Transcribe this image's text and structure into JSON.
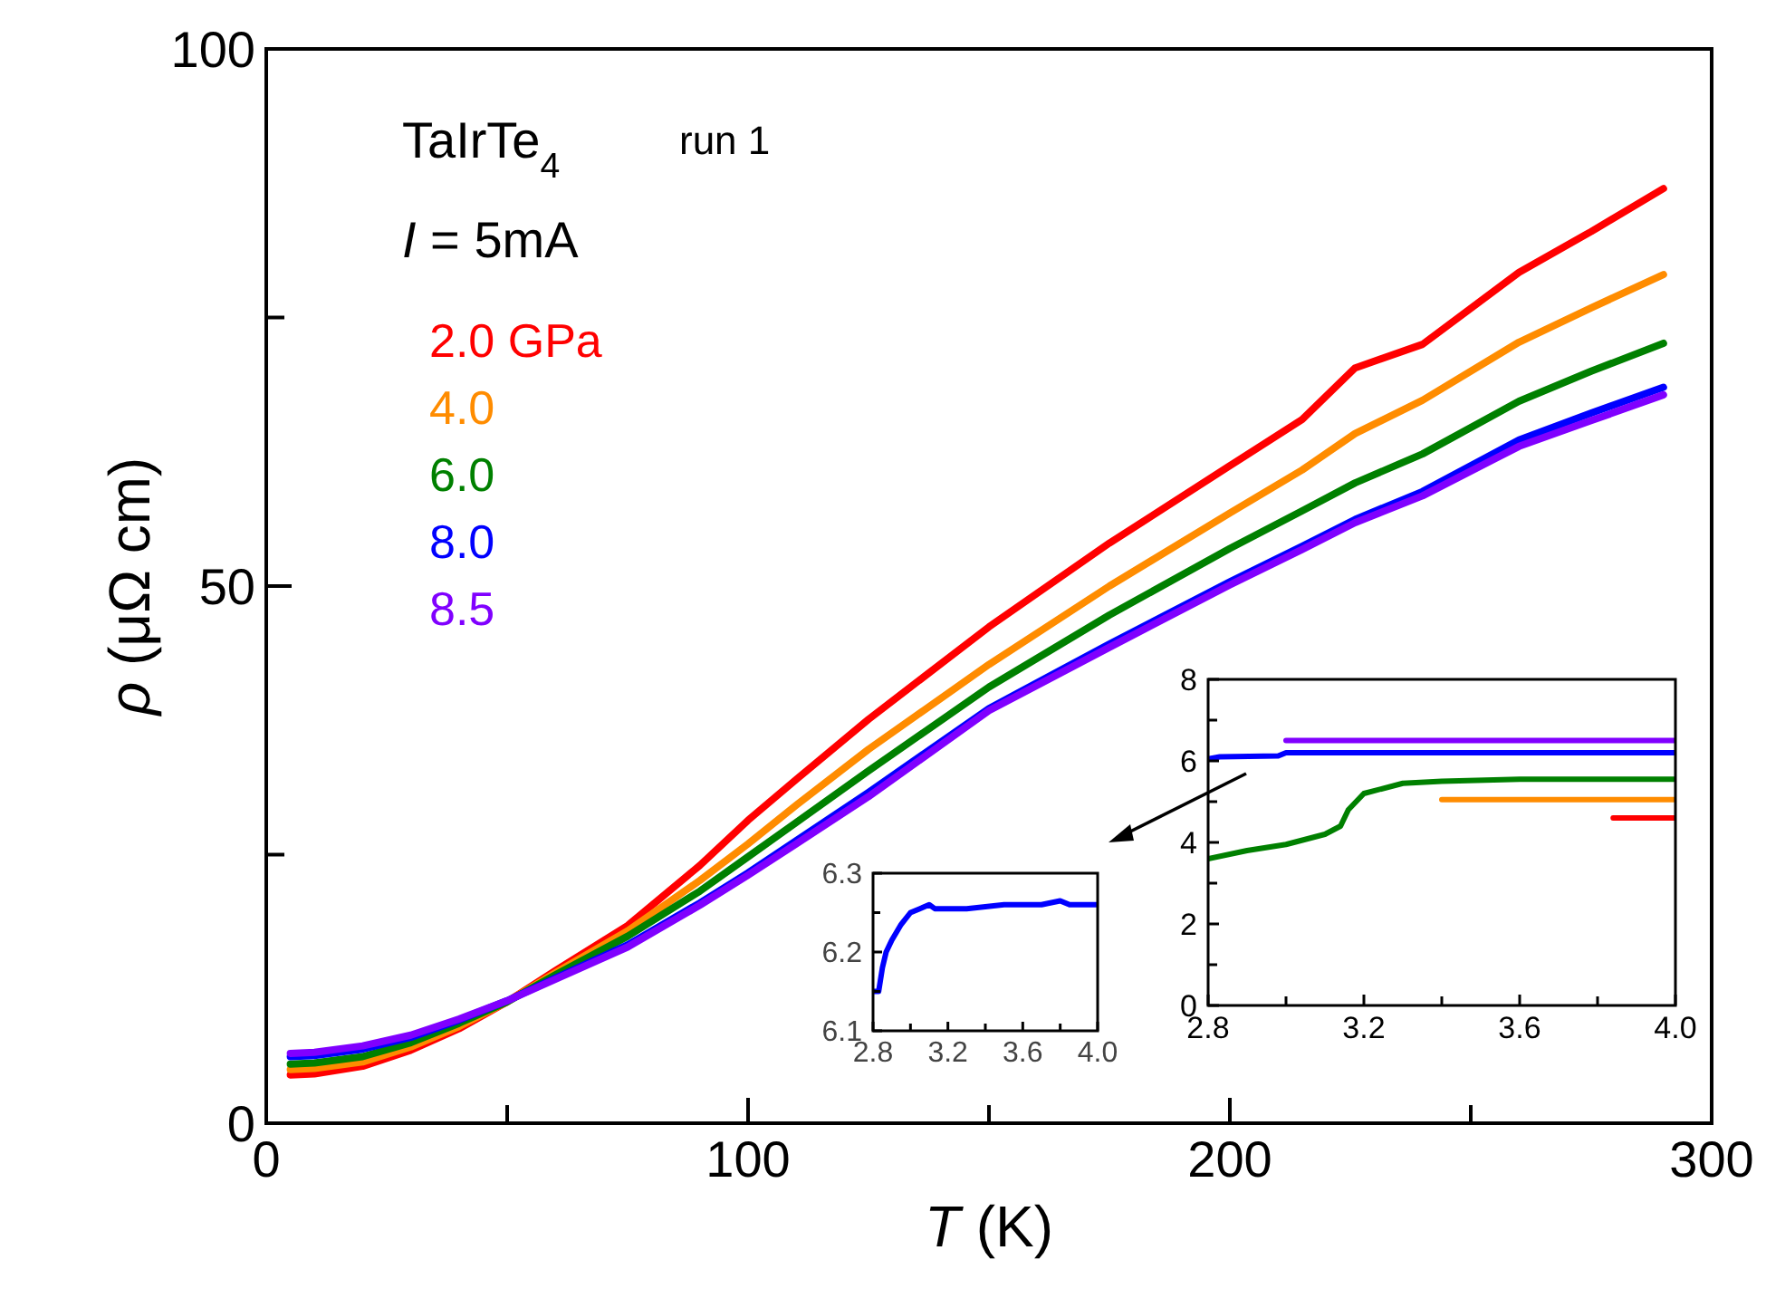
{
  "chart_data": [
    {
      "type": "line",
      "xlabel": "T (K)",
      "ylabel": "ρ (μΩ cm)",
      "annotations": [
        "TaIrTe$_{4}$",
        "run 1",
        "I = 5mA"
      ],
      "legend": "top left",
      "xlim": [
        0,
        300
      ],
      "xticks": [
        0,
        {
          "value": 50,
          "label": null
        },
        100,
        {
          "value": 150,
          "label": null
        },
        200,
        {
          "value": 250,
          "label": null
        },
        300
      ],
      "ylim": [
        0,
        100
      ],
      "yticks": [
        0,
        {
          "value": 25,
          "label": null
        },
        50,
        {
          "value": 75,
          "label": null
        },
        100
      ],
      "x": [
        5,
        10,
        20,
        30,
        40,
        50,
        60,
        75,
        90,
        100,
        110,
        125,
        150,
        175,
        200,
        215,
        226,
        240,
        260,
        275,
        290
      ],
      "series": [
        {
          "name": "2.0 GPa",
          "color": "#ff0000",
          "values": [
            4.5,
            4.6,
            5.3,
            6.8,
            8.8,
            11.3,
            14.2,
            18.4,
            24,
            28.2,
            32,
            37.6,
            46.2,
            54,
            61.2,
            65.5,
            70.3,
            72.5,
            79.2,
            83,
            87
          ]
        },
        {
          "name": "4.0",
          "color": "#ff8c00",
          "values": [
            5,
            5.1,
            5.7,
            7.1,
            9,
            11.3,
            14,
            17.9,
            22.6,
            26,
            29.6,
            34.8,
            42.7,
            50,
            56.8,
            60.8,
            64.2,
            67.3,
            72.7,
            75.9,
            79
          ]
        },
        {
          "name": "6.0",
          "color": "#008000",
          "values": [
            5.5,
            5.6,
            6.2,
            7.5,
            9.3,
            11.3,
            13.8,
            17.4,
            21.6,
            24.8,
            28,
            32.8,
            40.6,
            47.3,
            53.5,
            57,
            59.6,
            62.3,
            67.2,
            70,
            72.6
          ]
        },
        {
          "name": "8.0",
          "color": "#0000ff",
          "values": [
            6.2,
            6.3,
            6.9,
            8,
            9.6,
            11.4,
            13.5,
            16.6,
            20.5,
            23.3,
            26.3,
            30.8,
            38.6,
            44.6,
            50.4,
            53.7,
            56.2,
            58.8,
            63.6,
            66.1,
            68.5
          ]
        },
        {
          "name": "8.5",
          "color": "#8000ff",
          "values": [
            6.5,
            6.6,
            7.2,
            8.2,
            9.7,
            11.4,
            13.4,
            16.4,
            20.3,
            23.1,
            26,
            30.4,
            38.4,
            44.3,
            50.1,
            53.4,
            55.9,
            58.4,
            63,
            65.4,
            67.8
          ]
        }
      ]
    },
    {
      "type": "line",
      "xlim": [
        2.8,
        4.0
      ],
      "xticks": [
        2.8,
        {
          "value": 3.0,
          "label": null
        },
        3.2,
        {
          "value": 3.4,
          "label": null
        },
        3.6,
        {
          "value": 3.8,
          "label": null
        },
        {
          "value": 4,
          "label": "4.0"
        }
      ],
      "ylim": [
        0,
        8
      ],
      "yticks": [
        0,
        {
          "value": 1,
          "label": null
        },
        2,
        {
          "value": 3,
          "label": null
        },
        4,
        {
          "value": 5,
          "label": null
        },
        6,
        {
          "value": 7,
          "label": null
        },
        8
      ],
      "series": [
        {
          "color": "#ff0000",
          "x": [
            3.84,
            3.9,
            4.0
          ],
          "values": [
            4.6,
            4.6,
            4.6
          ]
        },
        {
          "color": "#ff8c00",
          "x": [
            3.4,
            3.7,
            4.0
          ],
          "values": [
            5.05,
            5.05,
            5.05
          ]
        },
        {
          "color": "#008000",
          "x": [
            2.8,
            2.9,
            3.0,
            3.1,
            3.14,
            3.16,
            3.2,
            3.3,
            3.4,
            3.6,
            4.0
          ],
          "values": [
            3.6,
            3.8,
            3.95,
            4.2,
            4.4,
            4.8,
            5.2,
            5.45,
            5.5,
            5.55,
            5.55
          ]
        },
        {
          "color": "#0000ff",
          "x": [
            2.8,
            2.83,
            2.98,
            3.0,
            3.5,
            4.0
          ],
          "values": [
            6.05,
            6.1,
            6.12,
            6.2,
            6.2,
            6.2
          ]
        },
        {
          "color": "#8000ff",
          "x": [
            3.0,
            3.5,
            4.0
          ],
          "values": [
            6.5,
            6.5,
            6.5
          ]
        }
      ]
    },
    {
      "type": "line",
      "xlim": [
        2.8,
        4.0
      ],
      "xticks": [
        2.8,
        {
          "value": 3.0,
          "label": null
        },
        3.2,
        {
          "value": 3.4,
          "label": null
        },
        3.6,
        {
          "value": 3.8,
          "label": null
        },
        {
          "value": 4,
          "label": "4.0"
        }
      ],
      "ylim": [
        6.1,
        6.3
      ],
      "yticks": [
        6.1,
        {
          "value": 6.15,
          "label": null
        },
        6.2,
        {
          "value": 6.25,
          "label": null
        },
        6.3
      ],
      "series": [
        {
          "color": "#0000ff",
          "x": [
            2.8,
            2.83,
            2.85,
            2.87,
            2.9,
            2.95,
            3.0,
            3.05,
            3.1,
            3.13,
            3.2,
            3.3,
            3.5,
            3.7,
            3.8,
            3.85,
            4.0
          ],
          "values": [
            6.15,
            6.15,
            6.18,
            6.2,
            6.215,
            6.235,
            6.25,
            6.255,
            6.26,
            6.255,
            6.255,
            6.255,
            6.26,
            6.26,
            6.265,
            6.26,
            6.26
          ]
        }
      ]
    }
  ]
}
